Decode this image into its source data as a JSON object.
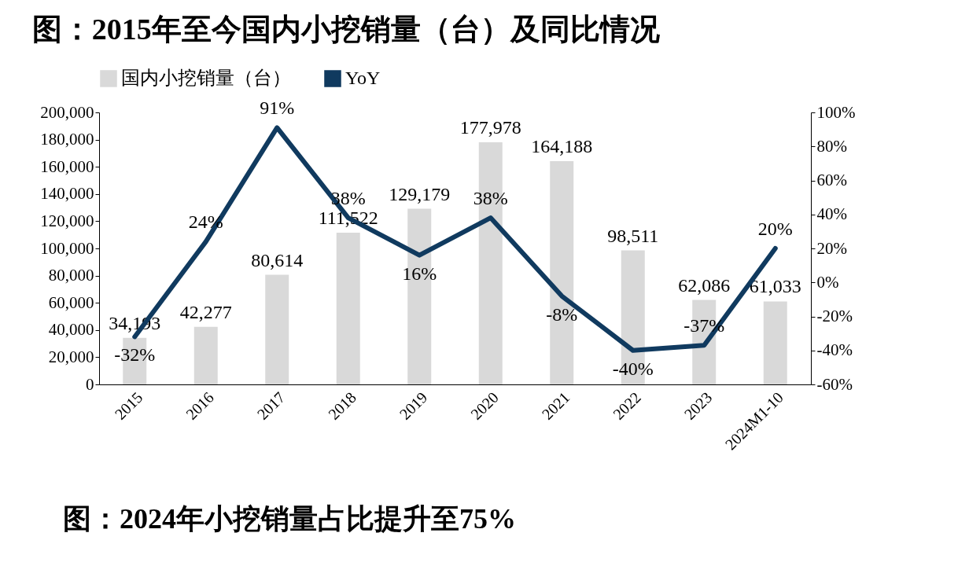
{
  "chart_data": {
    "type": "bar",
    "title": "图：2015年至今国内小挖销量（台）及同比情况",
    "categories": [
      "2015",
      "2016",
      "2017",
      "2018",
      "2019",
      "2020",
      "2021",
      "2022",
      "2023",
      "2024M1-10"
    ],
    "series": [
      {
        "name": "国内小挖销量（台）",
        "color": "#d9d9d9",
        "values": [
          34193,
          42277,
          80614,
          111522,
          129179,
          177978,
          164188,
          98511,
          62086,
          61033
        ],
        "value_labels": [
          "34,193",
          "42,277",
          "80,614",
          "111,522",
          "129,179",
          "177,978",
          "164,188",
          "98,511",
          "62,086",
          "61,033"
        ]
      },
      {
        "name": "YoY",
        "type": "line",
        "axis": "y2",
        "color": "#103a5f",
        "values": [
          -32,
          24,
          91,
          38,
          16,
          38,
          -8,
          -40,
          -37,
          20
        ],
        "value_labels": [
          "-32%",
          "24%",
          "91%",
          "38%",
          "16%",
          "38%",
          "-8%",
          "-40%",
          "-37%",
          "20%"
        ]
      }
    ],
    "ylim": [
      0,
      200000
    ],
    "yticks": [
      {
        "value": 0,
        "label": "0"
      },
      {
        "value": 20000,
        "label": "20,000"
      },
      {
        "value": 40000,
        "label": "40,000"
      },
      {
        "value": 60000,
        "label": "60,000"
      },
      {
        "value": 80000,
        "label": "80,000"
      },
      {
        "value": 100000,
        "label": "100,000"
      },
      {
        "value": 120000,
        "label": "120,000"
      },
      {
        "value": 140000,
        "label": "140,000"
      },
      {
        "value": 160000,
        "label": "160,000"
      },
      {
        "value": 180000,
        "label": "180,000"
      },
      {
        "value": 200000,
        "label": "200,000"
      }
    ],
    "y2lim": [
      -60,
      100
    ],
    "y2ticks": [
      {
        "value": -60,
        "label": "-60%"
      },
      {
        "value": -40,
        "label": "-40%"
      },
      {
        "value": -20,
        "label": "-20%"
      },
      {
        "value": 0,
        "label": "0%"
      },
      {
        "value": 20,
        "label": "20%"
      },
      {
        "value": 40,
        "label": "40%"
      },
      {
        "value": 60,
        "label": "60%"
      },
      {
        "value": 80,
        "label": "80%"
      },
      {
        "value": 100,
        "label": "100%"
      }
    ],
    "legend": "top",
    "grid": false,
    "marker": "none",
    "line_style": "solid",
    "annotations": [
      "图：2024年小挖销量占比提升至75%"
    ]
  }
}
